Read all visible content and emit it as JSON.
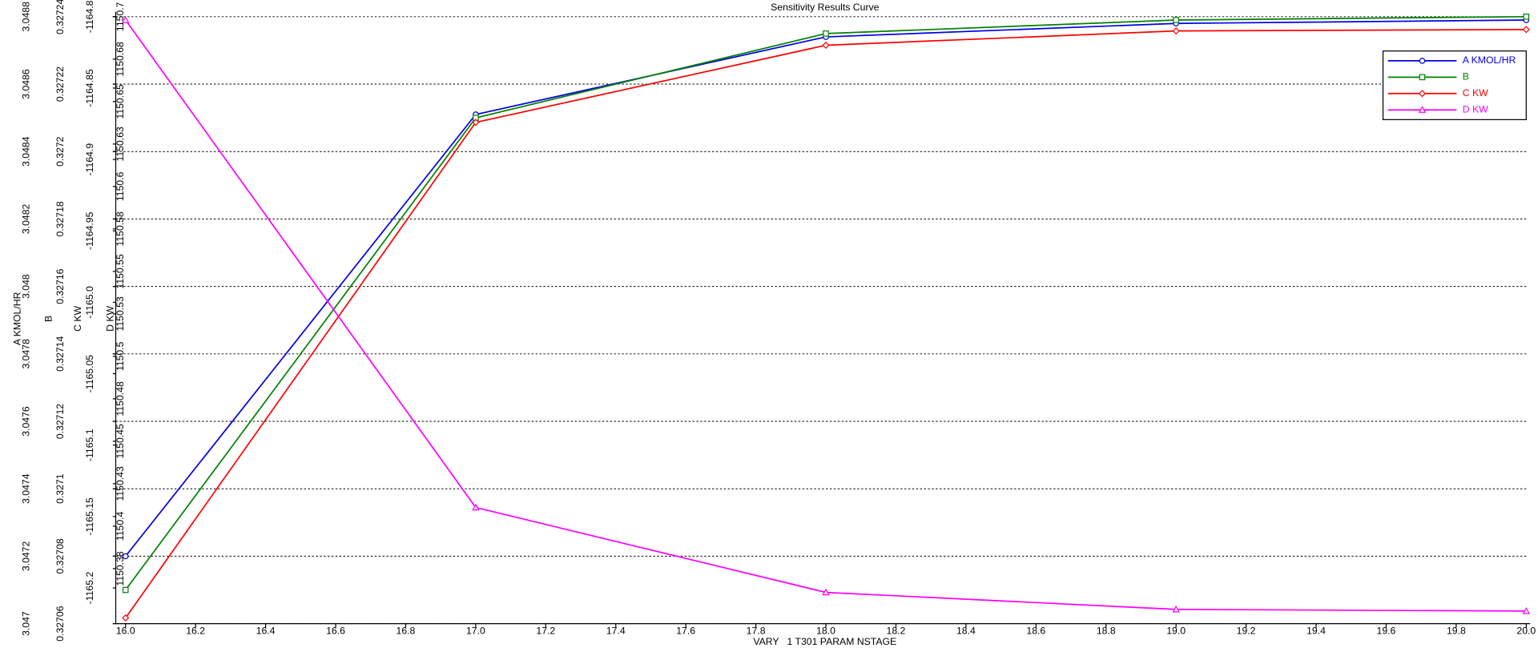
{
  "chart_data": {
    "type": "line",
    "title": "Sensitivity Results Curve",
    "x_label": "VARY   1 T301 PARAM NSTAGE",
    "x": [
      16,
      17,
      18,
      19,
      20
    ],
    "xlim": [
      16,
      20
    ],
    "xticks": [
      {
        "value": 16,
        "label": "16.0"
      },
      16.2,
      16.4,
      16.6,
      16.8,
      {
        "value": 17,
        "label": "17.0"
      },
      17.2,
      17.4,
      17.6,
      17.8,
      {
        "value": 18,
        "label": "18.0"
      },
      18.2,
      18.4,
      18.6,
      18.8,
      {
        "value": 19,
        "label": "19.0"
      },
      19.2,
      19.4,
      19.6,
      19.8,
      {
        "value": 20,
        "label": "20.0"
      }
    ],
    "grid": true,
    "legend": "upper right",
    "series": [
      {
        "name": "A KMOL/HR",
        "color": "#0000e6",
        "marker": "circle",
        "values": [
          3.0472,
          3.04851,
          3.04874,
          3.04878,
          3.04879
        ],
        "ylim": [
          3.047,
          3.0488
        ],
        "yticks": [
          3.047,
          3.0472,
          3.0474,
          3.0476,
          3.0478,
          3.048,
          3.0482,
          3.0484,
          3.0486,
          3.0488
        ]
      },
      {
        "name": "B",
        "color": "#008000",
        "marker": "square",
        "values": [
          0.32707,
          0.32721,
          0.327235,
          0.327239,
          0.32724
        ],
        "ylim": [
          0.32706,
          0.32724
        ],
        "yticks": [
          0.32706,
          0.32708,
          0.3271,
          0.32712,
          0.32714,
          0.32716,
          0.32718,
          0.3272,
          0.32722,
          0.32724
        ]
      },
      {
        "name": "C KW",
        "color": "#ff0000",
        "marker": "diamond",
        "values": [
          -1165.221,
          -1164.874,
          -1164.82,
          -1164.81,
          -1164.809
        ],
        "ylim": [
          -1165.225,
          -1164.8
        ],
        "yticks": [
          -1165.2,
          -1165.15,
          -1165.1,
          -1165.05,
          {
            "value": -1165,
            "label": "-1165.0"
          },
          -1164.95,
          -1164.9,
          -1164.85,
          -1164.8
        ]
      },
      {
        "name": "D KW",
        "color": "#ff00ff",
        "marker": "triangle",
        "values": [
          1150.698,
          1150.411,
          1150.361,
          1150.351,
          1150.35
        ],
        "ylim": [
          1150.3426,
          1150.7
        ],
        "yticks": [
          {
            "value": 1150.375,
            "label": "1150.38"
          },
          1150.4,
          {
            "value": 1150.425,
            "label": "1150.43"
          },
          1150.45,
          {
            "value": 1150.475,
            "label": "1150.48"
          },
          1150.5,
          {
            "value": 1150.525,
            "label": "1150.53"
          },
          1150.55,
          {
            "value": 1150.575,
            "label": "1150.58"
          },
          1150.6,
          {
            "value": 1150.625,
            "label": "1150.63"
          },
          1150.65,
          {
            "value": 1150.675,
            "label": "1150.68"
          },
          1150.7
        ]
      }
    ]
  }
}
